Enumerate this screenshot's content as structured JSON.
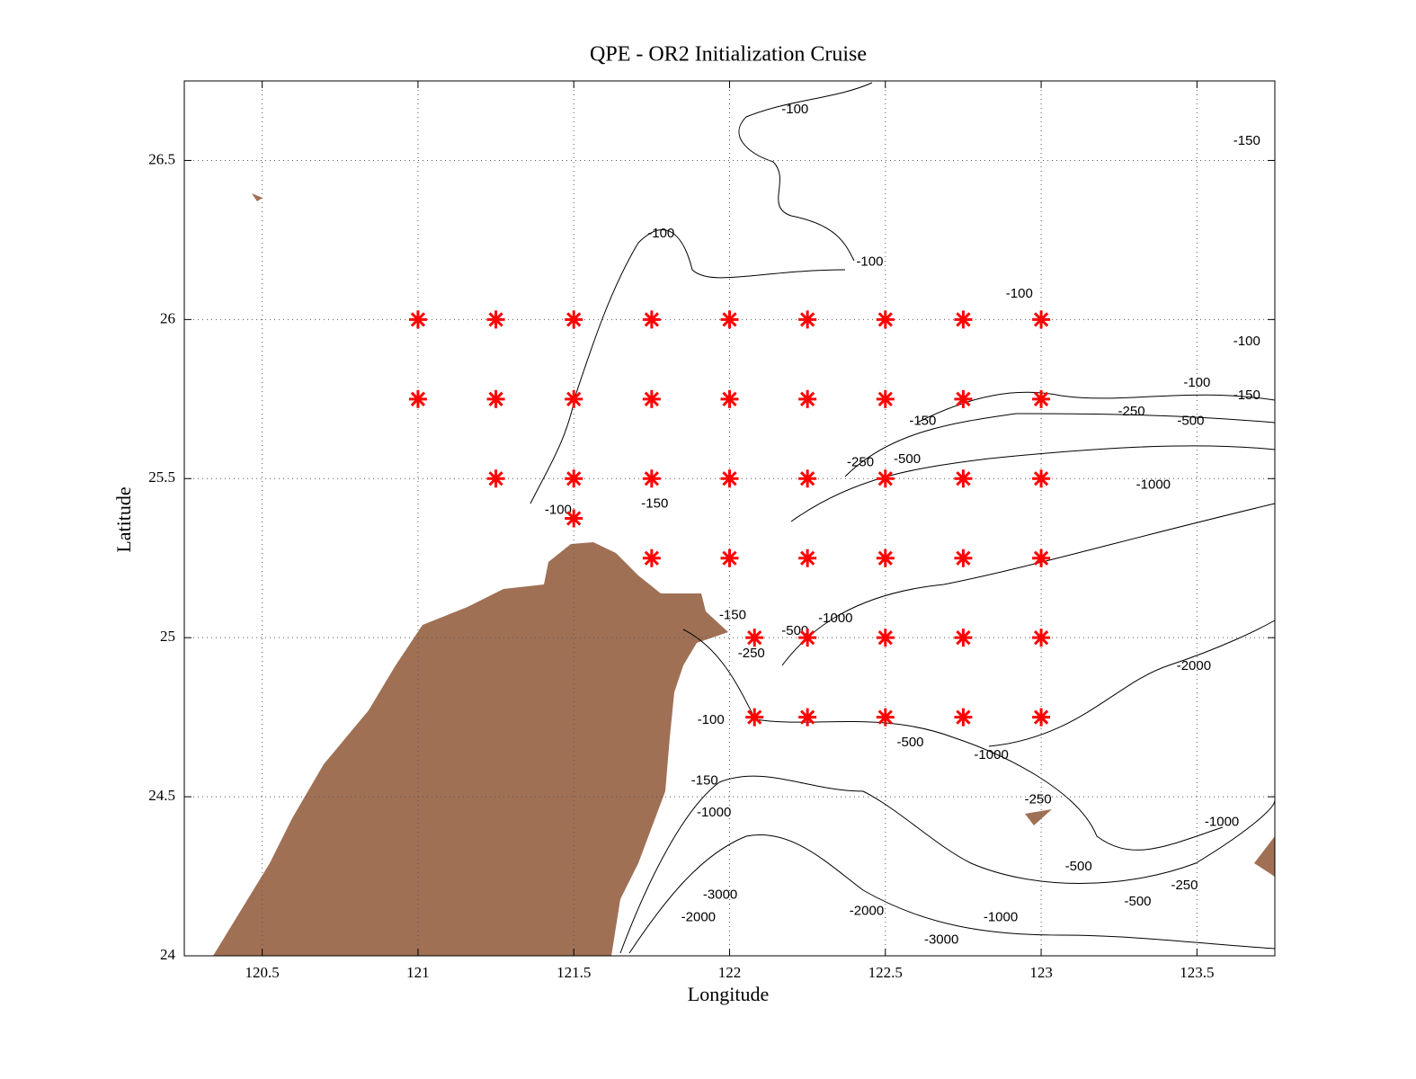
{
  "chart_data": {
    "type": "scatter",
    "title": "QPE - OR2 Initialization Cruise",
    "x_label": "Longitude",
    "y_label": "Latitude",
    "xlim": [
      120.25,
      123.75
    ],
    "ylim": [
      24,
      26.75
    ],
    "xticks": [
      120.5,
      121,
      121.5,
      122,
      122.5,
      123,
      123.5
    ],
    "yticks": [
      24,
      24.5,
      25,
      25.5,
      26,
      26.5
    ],
    "grid": true,
    "series": [
      {
        "color": "#ff0000",
        "marker": "asterisk",
        "x": [
          121,
          121.25,
          121.5,
          121.75,
          122,
          122.25,
          122.5,
          122.75,
          123,
          121,
          121.25,
          121.5,
          121.75,
          122,
          122.25,
          122.5,
          122.75,
          123,
          121.25,
          121.5,
          121.75,
          122,
          122.25,
          122.5,
          122.75,
          123,
          121.5,
          121.75,
          122,
          122.25,
          122.5,
          122.75,
          123,
          122.08,
          122.25,
          122.5,
          122.75,
          123,
          122.08,
          122.25,
          122.5,
          122.75,
          123
        ],
        "values": [
          26,
          26,
          26,
          26,
          26,
          26,
          26,
          26,
          26,
          25.75,
          25.75,
          25.75,
          25.75,
          25.75,
          25.75,
          25.75,
          25.75,
          25.75,
          25.5,
          25.5,
          25.5,
          25.5,
          25.5,
          25.5,
          25.5,
          25.5,
          25.375,
          25.25,
          25.25,
          25.25,
          25.25,
          25.25,
          25.25,
          25,
          25,
          25,
          25,
          25,
          24.75,
          24.75,
          24.75,
          24.75,
          24.75
        ]
      }
    ],
    "annotations": [
      {
        "text": "-100",
        "x": 122.21,
        "y": 26.66
      },
      {
        "text": "-150",
        "x": 123.66,
        "y": 26.56
      },
      {
        "text": "-100",
        "x": 121.78,
        "y": 26.27
      },
      {
        "text": "-100",
        "x": 122.45,
        "y": 26.18
      },
      {
        "text": "-100",
        "x": 122.93,
        "y": 26.08
      },
      {
        "text": "-100",
        "x": 123.66,
        "y": 25.93
      },
      {
        "text": "-100",
        "x": 123.5,
        "y": 25.8
      },
      {
        "text": "-150",
        "x": 123.66,
        "y": 25.76
      },
      {
        "text": "-250",
        "x": 123.29,
        "y": 25.71
      },
      {
        "text": "-500",
        "x": 123.48,
        "y": 25.68
      },
      {
        "text": "-150",
        "x": 122.62,
        "y": 25.68
      },
      {
        "text": "-250",
        "x": 122.42,
        "y": 25.55
      },
      {
        "text": "-500",
        "x": 122.57,
        "y": 25.56
      },
      {
        "text": "-1000",
        "x": 123.36,
        "y": 25.48
      },
      {
        "text": "-100",
        "x": 121.45,
        "y": 25.4
      },
      {
        "text": "-150",
        "x": 121.76,
        "y": 25.42
      },
      {
        "text": "-150",
        "x": 122.01,
        "y": 25.07
      },
      {
        "text": "-1000",
        "x": 122.34,
        "y": 25.06
      },
      {
        "text": "-500",
        "x": 122.21,
        "y": 25.02
      },
      {
        "text": "-2000",
        "x": 123.49,
        "y": 24.91
      },
      {
        "text": "-250",
        "x": 122.07,
        "y": 24.95
      },
      {
        "text": "-100",
        "x": 121.94,
        "y": 24.74
      },
      {
        "text": "-500",
        "x": 122.58,
        "y": 24.67
      },
      {
        "text": "-1000",
        "x": 122.84,
        "y": 24.63
      },
      {
        "text": "-250",
        "x": 122.99,
        "y": 24.49
      },
      {
        "text": "-1000",
        "x": 123.58,
        "y": 24.42
      },
      {
        "text": "-1000",
        "x": 121.95,
        "y": 24.45
      },
      {
        "text": "-150",
        "x": 121.92,
        "y": 24.55
      },
      {
        "text": "-500",
        "x": 123.12,
        "y": 24.28
      },
      {
        "text": "-3000",
        "x": 121.97,
        "y": 24.19
      },
      {
        "text": "-2000",
        "x": 122.44,
        "y": 24.14
      },
      {
        "text": "-1000",
        "x": 122.87,
        "y": 24.12
      },
      {
        "text": "-500",
        "x": 123.31,
        "y": 24.17
      },
      {
        "text": "-250",
        "x": 123.46,
        "y": 24.22
      },
      {
        "text": "-2000",
        "x": 121.9,
        "y": 24.12
      },
      {
        "text": "-3000",
        "x": 122.68,
        "y": 24.05
      }
    ]
  }
}
